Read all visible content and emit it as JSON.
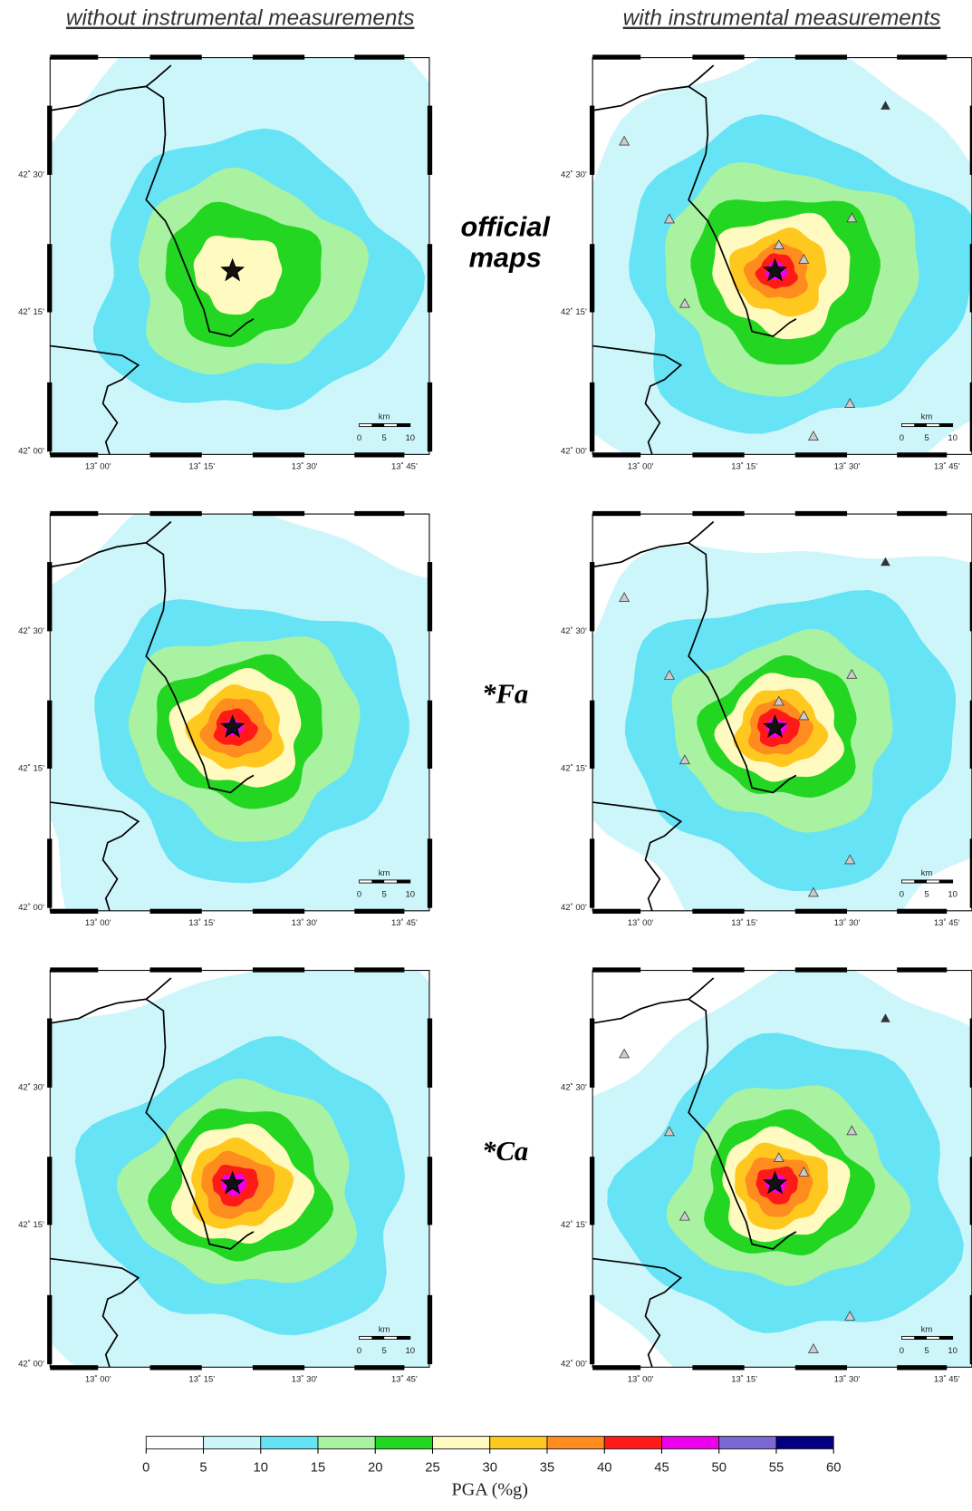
{
  "column_titles": [
    "without instrumental measurements",
    "with instrumental measurements"
  ],
  "row_labels": [
    [
      "official",
      "maps"
    ],
    [
      "*Fa"
    ],
    [
      "*Ca"
    ]
  ],
  "map_axes": {
    "lat_labels": [
      "42˚ 30'",
      "42˚ 15'",
      "42˚ 00'"
    ],
    "lon_labels": [
      "13˚ 00'",
      "13˚ 15'",
      "13˚ 30'",
      "13˚ 45'"
    ],
    "scale_unit": "km",
    "scale_labels": [
      "0",
      "5",
      "10"
    ]
  },
  "colorbar": {
    "label": "PGA (%g)",
    "ticks": [
      0,
      5,
      10,
      15,
      20,
      25,
      30,
      35,
      40,
      45,
      50,
      55,
      60
    ],
    "colors": [
      "#ffffff",
      "#cdf6fb",
      "#66e3f4",
      "#a8f2a2",
      "#22d622",
      "#fffac0",
      "#ffc81e",
      "#ff8c1e",
      "#ff1a1a",
      "#ee00ee",
      "#7b68d4",
      "#000080"
    ]
  }
}
